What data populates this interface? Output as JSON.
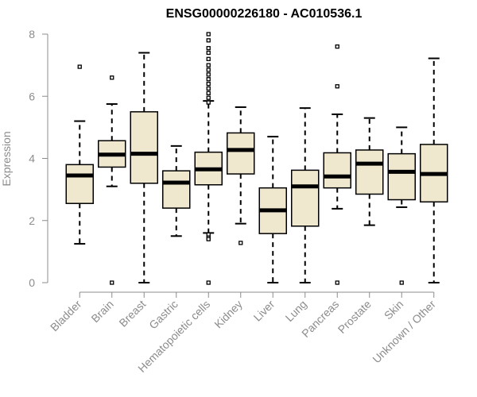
{
  "chart_data": {
    "type": "boxplot",
    "title": "ENSG00000226180 - AC010536.1",
    "xlabel": "",
    "ylabel": "Expression",
    "ylim": [
      0,
      8
    ],
    "yticks": [
      0,
      2,
      4,
      6,
      8
    ],
    "box_fill": "#efe8cf",
    "categories": [
      "Bladder",
      "Brain",
      "Breast",
      "Gastric",
      "Hematopoietic cells",
      "Kidney",
      "Liver",
      "Lung",
      "Pancreas",
      "Prostate",
      "Skin",
      "Unknown / Other"
    ],
    "boxes": [
      {
        "whisker_low": 1.25,
        "q1": 2.55,
        "median": 3.45,
        "q3": 3.8,
        "whisker_high": 5.2,
        "outliers": [
          6.95
        ]
      },
      {
        "whisker_low": 3.1,
        "q1": 3.72,
        "median": 4.12,
        "q3": 4.57,
        "whisker_high": 5.75,
        "outliers": [
          6.6,
          0.0
        ]
      },
      {
        "whisker_low": 0.0,
        "q1": 3.2,
        "median": 4.15,
        "q3": 5.5,
        "whisker_high": 7.4,
        "outliers": []
      },
      {
        "whisker_low": 1.5,
        "q1": 2.4,
        "median": 3.22,
        "q3": 3.6,
        "whisker_high": 4.4,
        "outliers": []
      },
      {
        "whisker_low": 1.6,
        "q1": 3.15,
        "median": 3.65,
        "q3": 4.2,
        "whisker_high": 5.85,
        "outliers": [
          8.0,
          7.8,
          7.55,
          7.4,
          7.2,
          7.0,
          6.85,
          6.7,
          6.55,
          6.4,
          6.25,
          6.1,
          5.95,
          5.8,
          1.55,
          1.45,
          1.4,
          0.0
        ]
      },
      {
        "whisker_low": 1.9,
        "q1": 3.5,
        "median": 4.27,
        "q3": 4.82,
        "whisker_high": 5.65,
        "outliers": [
          1.28
        ]
      },
      {
        "whisker_low": 0.0,
        "q1": 1.58,
        "median": 2.33,
        "q3": 3.05,
        "whisker_high": 4.7,
        "outliers": []
      },
      {
        "whisker_low": 0.0,
        "q1": 1.82,
        "median": 3.1,
        "q3": 3.62,
        "whisker_high": 5.62,
        "outliers": []
      },
      {
        "whisker_low": 2.38,
        "q1": 3.05,
        "median": 3.42,
        "q3": 4.18,
        "whisker_high": 5.42,
        "outliers": [
          7.6,
          6.32,
          0.0
        ]
      },
      {
        "whisker_low": 1.85,
        "q1": 2.85,
        "median": 3.83,
        "q3": 4.27,
        "whisker_high": 5.3,
        "outliers": []
      },
      {
        "whisker_low": 2.43,
        "q1": 2.67,
        "median": 3.57,
        "q3": 4.15,
        "whisker_high": 5.0,
        "outliers": [
          0.0
        ]
      },
      {
        "whisker_low": 0.0,
        "q1": 2.6,
        "median": 3.5,
        "q3": 4.45,
        "whisker_high": 7.22,
        "outliers": []
      }
    ]
  }
}
